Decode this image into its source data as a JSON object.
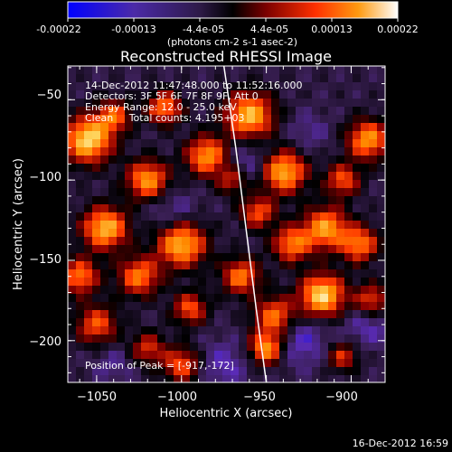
{
  "colorbar": {
    "tick_labels": [
      "-0.00022",
      "-0.00013",
      "-4.4e-05",
      "4.4e-05",
      "0.00013",
      "0.00022"
    ],
    "unit_text": "(photons cm-2 s-1 asec-2)",
    "range": [
      -0.00022,
      0.00022
    ]
  },
  "plot": {
    "title": "Reconstructed RHESSI Image",
    "info_lines": [
      "14-Dec-2012 11:47:48.000 to 11:52:16.000",
      "Detectors: 3F 5F 6F 7F 8F 9F, Att 0",
      "Energy Range: 12.0 - 25.0 keV",
      "Clean     Total counts: 4.195+03"
    ],
    "peak_text": "Position of Peak = [-917,-172]",
    "xlabel": "Heliocentric X (arcsec)",
    "ylabel": "Heliocentric Y (arcsec)"
  },
  "footer": {
    "timestamp": "16-Dec-2012 16:59"
  },
  "chart_data": {
    "type": "heatmap",
    "title": "Reconstructed RHESSI Image",
    "xlabel": "Heliocentric X (arcsec)",
    "ylabel": "Heliocentric Y (arcsec)",
    "xlim": [
      -1067,
      -880
    ],
    "ylim": [
      -226,
      -29
    ],
    "x_ticks": [
      -1050,
      -1000,
      -950,
      -900
    ],
    "y_ticks": [
      -50,
      -100,
      -150,
      -200
    ],
    "x_tick_labels": [
      "−1050",
      "−1000",
      "−950",
      "−900"
    ],
    "y_tick_labels": [
      "−50",
      "−100",
      "−150",
      "−200"
    ],
    "colormap": [
      "#0000ff",
      "#5a2bb6",
      "#3a1f55",
      "#000000",
      "#8a0000",
      "#ff3c00",
      "#ff8a00",
      "#ffd35a",
      "#ffffff"
    ],
    "color_range": [
      -0.00022,
      0.00022
    ],
    "peak_position": [
      -917,
      -172
    ],
    "limb_curve": [
      [
        -975,
        -29
      ],
      [
        -968,
        -80
      ],
      [
        -962,
        -130
      ],
      [
        -956,
        -180
      ],
      [
        -950,
        -226
      ]
    ]
  }
}
